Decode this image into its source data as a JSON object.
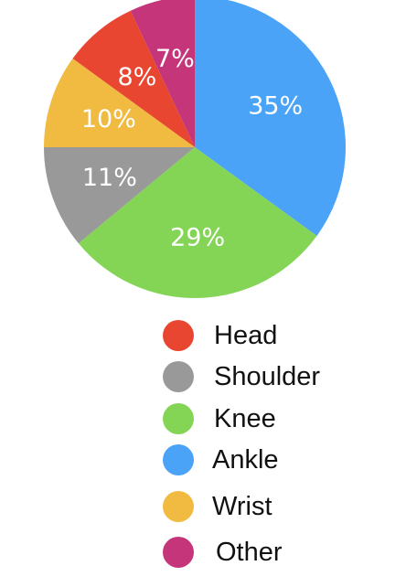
{
  "chart_data": {
    "type": "pie",
    "slices": [
      {
        "name": "Ankle",
        "value": 35,
        "label": "35%",
        "color": "#4aa3f7"
      },
      {
        "name": "Knee",
        "value": 29,
        "label": "29%",
        "color": "#84d555"
      },
      {
        "name": "Shoulder",
        "value": 11,
        "label": "11%",
        "color": "#999999"
      },
      {
        "name": "Wrist",
        "value": 10,
        "label": "10%",
        "color": "#f1bb42"
      },
      {
        "name": "Head",
        "value": 8,
        "label": "8%",
        "color": "#e84630"
      },
      {
        "name": "Other",
        "value": 7,
        "label": "7%",
        "color": "#c4357a"
      }
    ],
    "legend": {
      "placement": "bottom",
      "entries": [
        {
          "name": "Head",
          "color": "#e84630"
        },
        {
          "name": "Shoulder",
          "color": "#999999"
        },
        {
          "name": "Knee",
          "color": "#84d555"
        },
        {
          "name": "Ankle",
          "color": "#4aa3f7"
        },
        {
          "name": "Wrist",
          "color": "#f1bb42"
        },
        {
          "name": "Other",
          "color": "#c4357a"
        }
      ]
    }
  }
}
